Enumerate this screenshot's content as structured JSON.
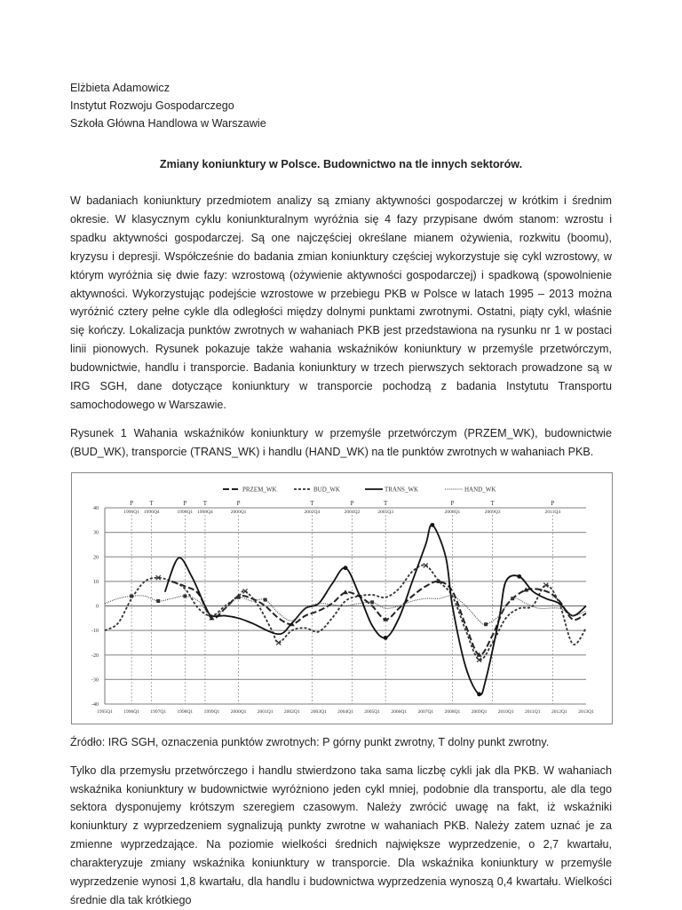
{
  "header": {
    "author": "Elżbieta Adamowicz",
    "institute": "Instytut Rozwoju Gospodarczego",
    "school": "Szkoła Główna Handlowa w Warszawie"
  },
  "title": "Zmiany koniunktury w Polsce. Budownictwo  na tle innych sektorów.",
  "paragraph1": "W badaniach koniunktury przedmiotem analizy są zmiany aktywności gospodarczej w krótkim i średnim okresie. W klasycznym cyklu koniunkturalnym wyróżnia się 4 fazy przypisane dwóm stanom: wzrostu i spadku aktywności  gospodarczej. Są one najczęściej określane mianem ożywienia, rozkwitu (boomu), kryzysu i depresji. Współcześnie do badania zmian koniunktury częściej wykorzystuje się cykl wzrostowy, w którym wyróżnia się dwie fazy: wzrostową (ożywienie aktywności gospodarczej) i spadkową (spowolnienie aktywności. Wykorzystując podejście wzrostowe w przebiegu PKB w Polsce w latach 1995 – 2013 można wyróżnić cztery pełne cykle dla odległości między dolnymi punktami zwrotnymi. Ostatni, piąty cykl, właśnie się kończy. Lokalizacja punktów zwrotnych w wahaniach PKB jest przedstawiona na rysunku nr 1 w postaci linii pionowych. Rysunek pokazuje także wahania wskaźników koniunktury w przemyśle przetwórczym, budownictwie, handlu i transporcie.  Badania koniunktury w trzech pierwszych sektorach prowadzone są w IRG SGH, dane dotyczące koniunktury w transporcie pochodzą z badania Instytutu Transportu samochodowego w Warszawie.",
  "figure_caption": "Rysunek 1 Wahania wskaźników koniunktury w przemyśle przetwórczym (PRZEM_WK), budownictwie (BUD_WK), transporcie (TRANS_WK) i handlu (HAND_WK) na tle punktów zwrotnych w wahaniach PKB.",
  "source_note": "Źródło: IRG SGH, oznaczenia punktów zwrotnych: P górny punkt zwrotny, T dolny punkt zwrotny.",
  "paragraph2": "Tylko dla przemysłu przetwórczego i handlu stwierdzono taka sama liczbę cykli jak dla PKB. W wahaniach wskaźnika koniunktury w budownictwie wyróżniono jeden cykl mniej, podobnie dla transportu, ale dla tego sektora dysponujemy krótszym szeregiem czasowym. Należy zwrócić uwagę na fakt, iż wskaźniki koniunktury z wyprzedzeniem sygnalizują punkty zwrotne w wahaniach PKB. Należy zatem uznać je za zmienne wyprzedzające. Na poziomie wielkości średnich największe wyprzedzenie, o 2,7 kwartału, charakteryzuje zmiany wskaźnika koniunktury w transporcie. Dla wskaźnika koniunktury w przemyśle wyprzedzenie wynosi 1,8 kwartału, dla handlu i budownictwa wyprzedzenia wynoszą 0,4 kwartału.  Wielkości średnie dla tak krótkiego",
  "chart_data": {
    "type": "line",
    "title": "",
    "xlabel": "",
    "ylabel": "",
    "ylim": [
      -40,
      40
    ],
    "yticks": [
      40,
      30,
      20,
      10,
      0,
      -10,
      -20,
      -30,
      -40
    ],
    "xlim": [
      "1995Q1",
      "2013Q1"
    ],
    "xticks": [
      "1995Q1",
      "1996Q1",
      "1997Q1",
      "1998Q1",
      "1999Q1",
      "2000Q1",
      "2001Q1",
      "2002Q1",
      "2003Q1",
      "2004Q1",
      "2005Q1",
      "2006Q1",
      "2007Q1",
      "2008Q1",
      "2009Q1",
      "2010Q1",
      "2011Q1",
      "2012Q1",
      "2013Q1"
    ],
    "grid": "horizontal",
    "legend": "top",
    "turning_points": [
      {
        "type": "P",
        "quarter": "1996Q1"
      },
      {
        "type": "T",
        "quarter": "1996Q4"
      },
      {
        "type": "P",
        "quarter": "1998Q1"
      },
      {
        "type": "T",
        "quarter": "1998Q4"
      },
      {
        "type": "P",
        "quarter": "2000Q1"
      },
      {
        "type": "T",
        "quarter": "2002Q4"
      },
      {
        "type": "P",
        "quarter": "2004Q2"
      },
      {
        "type": "T",
        "quarter": "2005Q3"
      },
      {
        "type": "P",
        "quarter": "2008Q1"
      },
      {
        "type": "T",
        "quarter": "2009Q3"
      },
      {
        "type": "P",
        "quarter": "2011Q4"
      }
    ],
    "series": [
      {
        "name": "PRZEM_WK",
        "style": "long-dash",
        "marker": "triangle",
        "points": [
          [
            "1997Q3",
            10
          ],
          [
            "1998Q1",
            8
          ],
          [
            "1998Q3",
            5
          ],
          [
            "1999Q1",
            -5
          ],
          [
            "1999Q3",
            -1
          ],
          [
            "2000Q1",
            4
          ],
          [
            "2000Q3",
            3
          ],
          [
            "2001Q1",
            0
          ],
          [
            "2001Q3",
            -5
          ],
          [
            "2002Q1",
            -7.5
          ],
          [
            "2002Q3",
            -4
          ],
          [
            "2003Q1",
            -2
          ],
          [
            "2003Q3",
            1
          ],
          [
            "2004Q1",
            5.5
          ],
          [
            "2004Q3",
            4
          ],
          [
            "2005Q1",
            0
          ],
          [
            "2005Q3",
            -5.5
          ],
          [
            "2006Q1",
            -1
          ],
          [
            "2006Q3",
            4
          ],
          [
            "2007Q1",
            8
          ],
          [
            "2007Q3",
            10
          ],
          [
            "2008Q1",
            6
          ],
          [
            "2008Q3",
            -8
          ],
          [
            "2009Q1",
            -20
          ],
          [
            "2009Q3",
            -12
          ],
          [
            "2010Q1",
            0
          ],
          [
            "2010Q4",
            6.5
          ],
          [
            "2011Q3",
            6
          ],
          [
            "2012Q1",
            2
          ],
          [
            "2012Q3",
            -5.5
          ],
          [
            "2013Q1",
            -3
          ]
        ],
        "markers": [
          "1999Q1",
          "2000Q1",
          "2002Q1",
          "2004Q1",
          "2005Q3",
          "2007Q3",
          "2009Q1",
          "2010Q4"
        ]
      },
      {
        "name": "BUD_WK",
        "style": "short-dash",
        "marker": "x",
        "points": [
          [
            "1995Q1",
            -10
          ],
          [
            "1995Q3",
            -7
          ],
          [
            "1996Q1",
            3
          ],
          [
            "1996Q3",
            10
          ],
          [
            "1997Q1",
            11.5
          ],
          [
            "1997Q3",
            10
          ],
          [
            "1998Q1",
            7
          ],
          [
            "1998Q3",
            -1
          ],
          [
            "1999Q1",
            -4
          ],
          [
            "1999Q3",
            0
          ],
          [
            "2000Q1",
            4
          ],
          [
            "2000Q2",
            6
          ],
          [
            "2000Q4",
            0
          ],
          [
            "2001Q2",
            -10
          ],
          [
            "2001Q3",
            -15
          ],
          [
            "2002Q1",
            -10
          ],
          [
            "2002Q3",
            -9
          ],
          [
            "2003Q1",
            -10.5
          ],
          [
            "2003Q3",
            -5
          ],
          [
            "2004Q1",
            2
          ],
          [
            "2004Q3",
            4
          ],
          [
            "2005Q1",
            4.5
          ],
          [
            "2005Q3",
            3.5
          ],
          [
            "2006Q1",
            7
          ],
          [
            "2006Q3",
            14
          ],
          [
            "2007Q1",
            16.5
          ],
          [
            "2007Q3",
            10
          ],
          [
            "2008Q1",
            4
          ],
          [
            "2008Q3",
            -10
          ],
          [
            "2009Q1",
            -22
          ],
          [
            "2009Q3",
            -15
          ],
          [
            "2010Q1",
            -5
          ],
          [
            "2010Q3",
            -1
          ],
          [
            "2011Q1",
            0
          ],
          [
            "2011Q3",
            8.5
          ],
          [
            "2012Q1",
            1
          ],
          [
            "2012Q3",
            -15.5
          ],
          [
            "2013Q1",
            -9
          ]
        ],
        "markers": [
          "1997Q1",
          "2000Q2",
          "2001Q3",
          "2007Q1",
          "2009Q1",
          "2011Q3"
        ]
      },
      {
        "name": "TRANS_WK",
        "style": "solid-thick",
        "marker": "circle",
        "points": [
          [
            "1997Q2",
            5.7
          ],
          [
            "1997Q4",
            19.5
          ],
          [
            "1998Q2",
            12
          ],
          [
            "1998Q4",
            0
          ],
          [
            "1999Q1",
            -4
          ],
          [
            "1999Q3",
            -4
          ],
          [
            "2000Q1",
            -5
          ],
          [
            "2000Q3",
            -7
          ],
          [
            "2001Q3",
            -11.5
          ],
          [
            "2002Q1",
            -7
          ],
          [
            "2002Q3",
            -1
          ],
          [
            "2003Q1",
            1
          ],
          [
            "2003Q3",
            9
          ],
          [
            "2004Q1",
            15.5
          ],
          [
            "2004Q3",
            5
          ],
          [
            "2005Q1",
            -8
          ],
          [
            "2005Q3",
            -13
          ],
          [
            "2006Q1",
            -5
          ],
          [
            "2006Q3",
            10
          ],
          [
            "2007Q1",
            25
          ],
          [
            "2007Q2",
            33
          ],
          [
            "2007Q4",
            20
          ],
          [
            "2008Q1",
            0
          ],
          [
            "2008Q3",
            -25
          ],
          [
            "2009Q1",
            -36
          ],
          [
            "2009Q2",
            -30
          ],
          [
            "2009Q4",
            -5
          ],
          [
            "2010Q1",
            10
          ],
          [
            "2010Q3",
            12
          ],
          [
            "2011Q1",
            6
          ],
          [
            "2011Q3",
            3
          ],
          [
            "2012Q1",
            1
          ],
          [
            "2012Q3",
            -4
          ],
          [
            "2013Q1",
            0
          ]
        ],
        "markers": [
          "2004Q1",
          "2005Q3",
          "2007Q2",
          "2009Q1",
          "2010Q3"
        ]
      },
      {
        "name": "HAND_WK",
        "style": "dotted",
        "marker": "square",
        "points": [
          [
            "1995Q1",
            1
          ],
          [
            "1995Q3",
            3
          ],
          [
            "1996Q1",
            4
          ],
          [
            "1996Q3",
            4
          ],
          [
            "1997Q1",
            2
          ],
          [
            "1997Q3",
            3
          ],
          [
            "1998Q1",
            4
          ],
          [
            "1998Q3",
            2
          ],
          [
            "1999Q1",
            -4
          ],
          [
            "1999Q3",
            -1
          ],
          [
            "2000Q1",
            3.5
          ],
          [
            "2000Q3",
            2
          ],
          [
            "2001Q1",
            2.5
          ],
          [
            "2001Q3",
            -3
          ],
          [
            "2002Q1",
            -6
          ],
          [
            "2002Q3",
            -1
          ],
          [
            "2003Q1",
            1
          ],
          [
            "2003Q3",
            0.5
          ],
          [
            "2004Q1",
            0
          ],
          [
            "2004Q3",
            1
          ],
          [
            "2005Q1",
            1.5
          ],
          [
            "2005Q3",
            -1
          ],
          [
            "2006Q1",
            0
          ],
          [
            "2006Q3",
            2
          ],
          [
            "2007Q1",
            3
          ],
          [
            "2007Q3",
            3
          ],
          [
            "2008Q1",
            4
          ],
          [
            "2008Q3",
            0
          ],
          [
            "2009Q1",
            -6
          ],
          [
            "2009Q2",
            -7.5
          ],
          [
            "2009Q4",
            -4
          ],
          [
            "2010Q2",
            3
          ],
          [
            "2010Q4",
            1
          ],
          [
            "2011Q2",
            -1
          ],
          [
            "2012Q1",
            -1
          ],
          [
            "2012Q3",
            -4
          ],
          [
            "2013Q1",
            -2
          ]
        ],
        "markers": [
          "1996Q1",
          "1997Q1",
          "1998Q1",
          "2000Q1",
          "2001Q1",
          "2005Q1",
          "2009Q2",
          "2010Q2"
        ]
      }
    ]
  }
}
